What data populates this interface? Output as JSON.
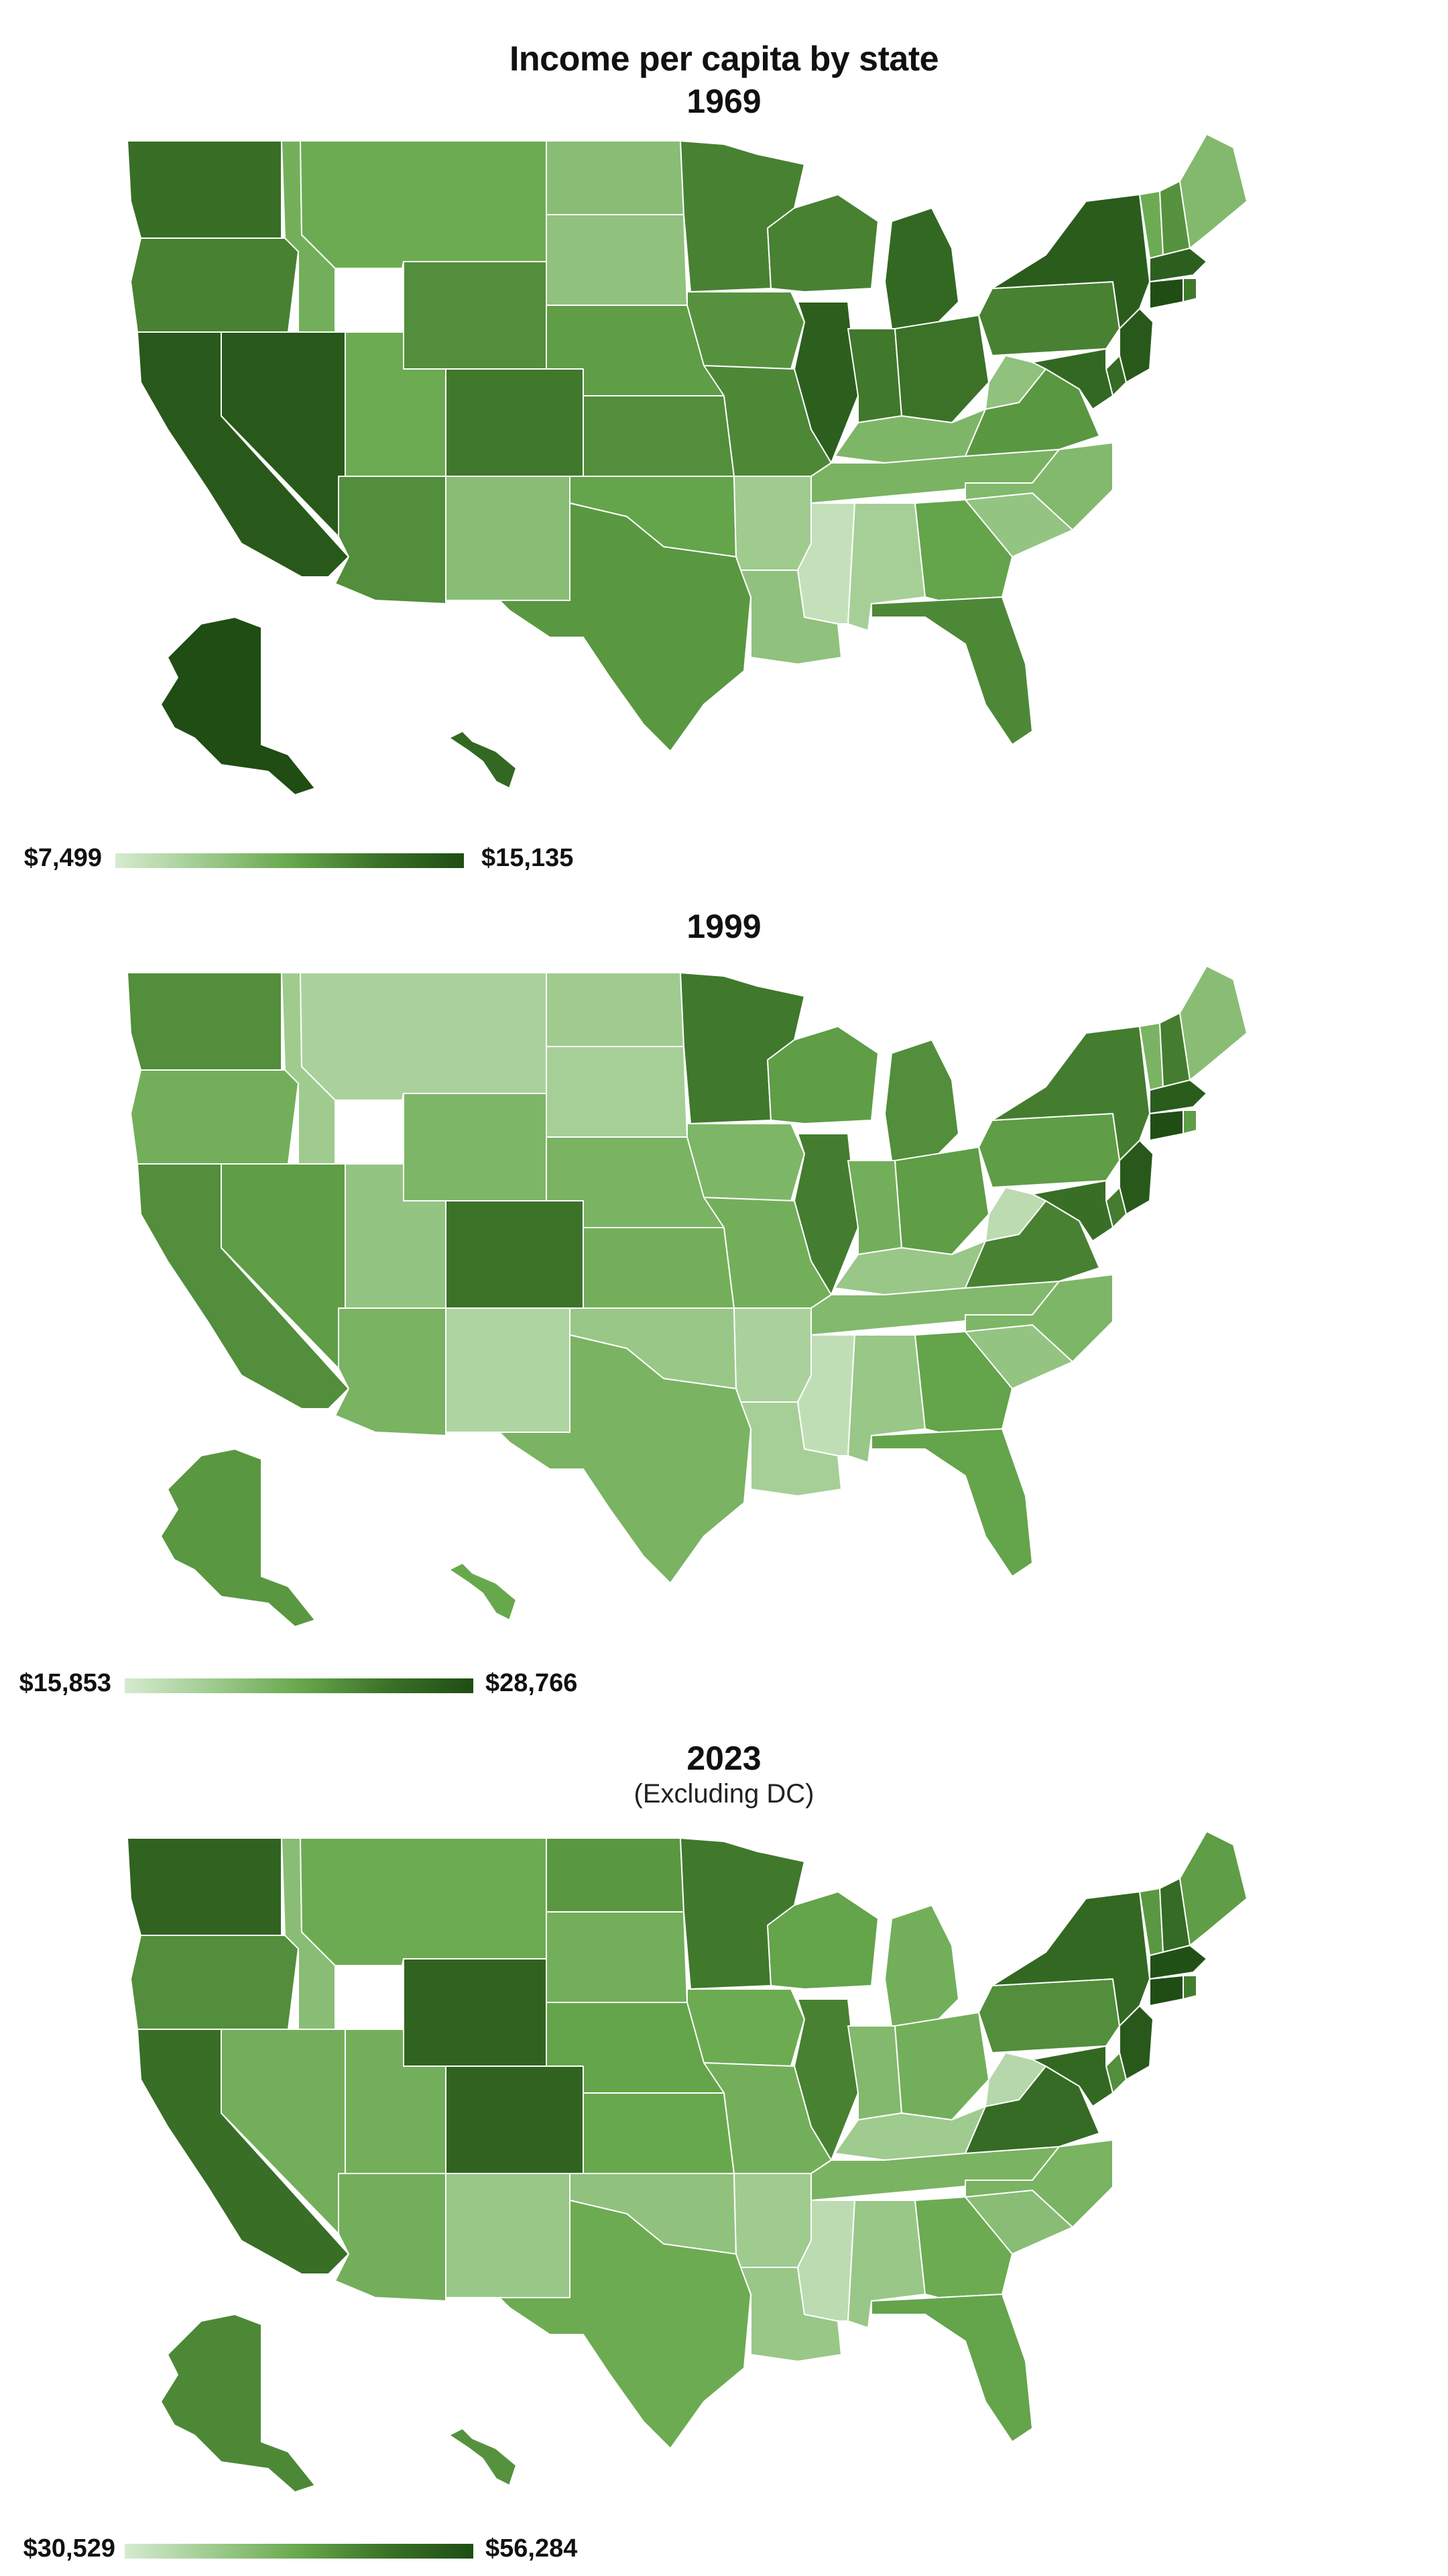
{
  "title": "Income per capita by state",
  "colors": {
    "low": "#d6ead0",
    "high": "#1f4d14"
  },
  "panels": [
    {
      "year": "1969",
      "subtitle": "",
      "legend_min": "$7,499",
      "legend_max": "$15,135",
      "levels": {
        "WA": 0.78,
        "OR": 0.68,
        "CA": 0.92,
        "NV": 0.92,
        "ID": 0.45,
        "MT": 0.48,
        "WY": 0.62,
        "UT": 0.48,
        "AZ": 0.62,
        "CO": 0.72,
        "NM": 0.35,
        "ND": 0.35,
        "SD": 0.32,
        "NE": 0.55,
        "KS": 0.62,
        "OK": 0.52,
        "TX": 0.58,
        "MN": 0.68,
        "IA": 0.6,
        "MO": 0.65,
        "AR": 0.25,
        "LA": 0.32,
        "WI": 0.68,
        "IL": 0.88,
        "MI": 0.82,
        "IN": 0.72,
        "OH": 0.75,
        "KY": 0.4,
        "TN": 0.42,
        "MS": 0.08,
        "AL": 0.22,
        "GA": 0.52,
        "FL": 0.65,
        "SC": 0.3,
        "NC": 0.38,
        "VA": 0.58,
        "WV": 0.32,
        "PA": 0.68,
        "NY": 0.9,
        "VT": 0.48,
        "NH": 0.6,
        "ME": 0.38,
        "MA": 0.88,
        "CT": 1.0,
        "RI": 0.72,
        "NJ": 0.92,
        "DE": 0.8,
        "MD": 0.82,
        "AK": 1.0,
        "HI": 0.82
      }
    },
    {
      "year": "1999",
      "subtitle": "",
      "legend_min": "$15,853",
      "legend_max": "$28,766",
      "levels": {
        "WA": 0.62,
        "OR": 0.45,
        "CA": 0.62,
        "NV": 0.55,
        "ID": 0.25,
        "MT": 0.2,
        "WY": 0.4,
        "UT": 0.3,
        "AZ": 0.42,
        "CO": 0.75,
        "NM": 0.18,
        "ND": 0.25,
        "SD": 0.22,
        "NE": 0.42,
        "KS": 0.45,
        "OK": 0.28,
        "TX": 0.42,
        "MN": 0.72,
        "IA": 0.4,
        "MO": 0.45,
        "AR": 0.2,
        "LA": 0.22,
        "WI": 0.55,
        "IL": 0.7,
        "MI": 0.62,
        "IN": 0.45,
        "OH": 0.55,
        "KY": 0.28,
        "TN": 0.38,
        "MS": 0.1,
        "AL": 0.28,
        "GA": 0.52,
        "FL": 0.52,
        "SC": 0.3,
        "NC": 0.4,
        "VA": 0.68,
        "WV": 0.12,
        "PA": 0.55,
        "NY": 0.7,
        "VT": 0.42,
        "NH": 0.7,
        "ME": 0.35,
        "MA": 0.9,
        "CT": 1.0,
        "RI": 0.55,
        "NJ": 0.92,
        "DE": 0.7,
        "MD": 0.78,
        "AK": 0.58,
        "HI": 0.5
      }
    },
    {
      "year": "2023",
      "subtitle": "(Excluding DC)",
      "legend_min": "$30,529",
      "legend_max": "$56,284",
      "levels": {
        "WA": 0.85,
        "OR": 0.62,
        "CA": 0.78,
        "NV": 0.45,
        "ID": 0.35,
        "MT": 0.48,
        "WY": 0.85,
        "UT": 0.45,
        "AZ": 0.45,
        "CO": 0.85,
        "NM": 0.28,
        "ND": 0.58,
        "SD": 0.45,
        "NE": 0.52,
        "KS": 0.5,
        "OK": 0.32,
        "TX": 0.48,
        "MN": 0.72,
        "IA": 0.48,
        "MO": 0.45,
        "AR": 0.25,
        "LA": 0.28,
        "WI": 0.52,
        "IL": 0.68,
        "MI": 0.45,
        "IN": 0.38,
        "OH": 0.45,
        "KY": 0.25,
        "TN": 0.42,
        "MS": 0.12,
        "AL": 0.28,
        "GA": 0.48,
        "FL": 0.52,
        "SC": 0.35,
        "NC": 0.42,
        "VA": 0.8,
        "WV": 0.15,
        "PA": 0.62,
        "NY": 0.82,
        "VT": 0.58,
        "NH": 0.8,
        "ME": 0.55,
        "MA": 0.98,
        "CT": 1.0,
        "RI": 0.7,
        "NJ": 0.92,
        "DE": 0.62,
        "MD": 0.82,
        "AK": 0.65,
        "HI": 0.6
      }
    }
  ]
}
